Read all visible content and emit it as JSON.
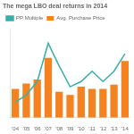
{
  "chart_data": {
    "type": "bar",
    "title": "The mega LBO deal returns in 2014",
    "categories": [
      "'04",
      "'05",
      "'06",
      "'07",
      "'08",
      "'09",
      "'10",
      "'11",
      "'12",
      "'13",
      "'14"
    ],
    "series": [
      {
        "name": "Avg. Purchase Price",
        "type": "bar",
        "color": "#F58220",
        "values": [
          2.8,
          3.3,
          3.7,
          5.8,
          2.5,
          2.2,
          3.0,
          2.8,
          2.8,
          3.2,
          5.5
        ]
      },
      {
        "name": "PP Multiple",
        "type": "line",
        "color": "#3aafa9",
        "values": [
          1.5,
          2.2,
          3.5,
          7.2,
          5.0,
          3.0,
          3.5,
          4.5,
          3.5,
          4.5,
          6.2
        ]
      }
    ],
    "ylim": [
      0,
      8.5
    ],
    "grid": false,
    "legend": "upper left",
    "tick_labels": "x"
  }
}
